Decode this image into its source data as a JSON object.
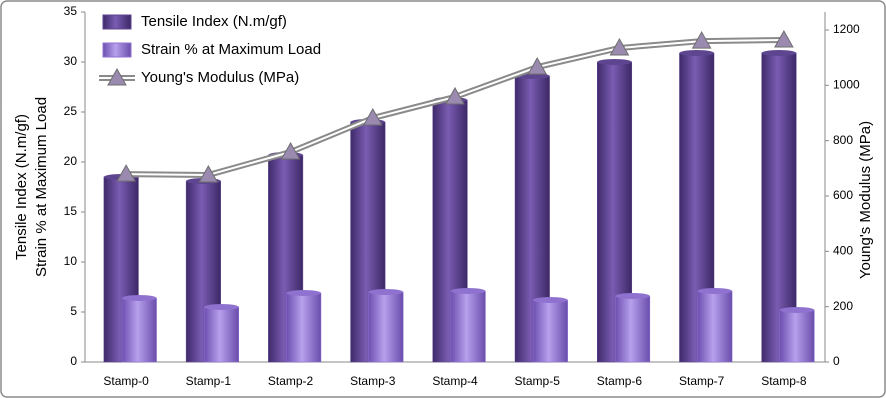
{
  "chart_data": {
    "type": "bar",
    "ylabel": [
      "Tensile Index (N.m/gf)",
      "Strain % at Maximum Load"
    ],
    "y2label": "Young's Modulus (MPa)",
    "categories": [
      "Stamp-0",
      "Stamp-1",
      "Stamp-2",
      "Stamp-3",
      "Stamp-4",
      "Stamp-5",
      "Stamp-6",
      "Stamp-7",
      "Stamp-8"
    ],
    "series": [
      {
        "name": "Tensile Index (N.m/gf)",
        "type": "bar",
        "color": "#5e4590",
        "values": [
          18.5,
          18.1,
          20.7,
          24.0,
          26.2,
          28.6,
          30.0,
          30.9,
          30.9
        ]
      },
      {
        "name": "Strain % at Maximum Load",
        "type": "bar",
        "color": "#8f72cf",
        "values": [
          6.4,
          5.5,
          6.9,
          7.0,
          7.1,
          6.2,
          6.6,
          7.1,
          5.2
        ]
      },
      {
        "name": "Young's Modulus (MPa)",
        "type": "line",
        "axis": "y2",
        "color": "#8a8a8a",
        "values": [
          679,
          676,
          759,
          882,
          958,
          1066,
          1135,
          1160,
          1164
        ]
      }
    ],
    "ylim": [
      0,
      35
    ],
    "yticks": [
      0,
      5,
      10,
      15,
      20,
      25,
      30,
      35
    ],
    "y2lim": [
      0,
      1200
    ],
    "y2ticks": [
      0,
      200,
      400,
      600,
      800,
      1000,
      1200
    ],
    "legend": "upper left",
    "grid": false
  }
}
